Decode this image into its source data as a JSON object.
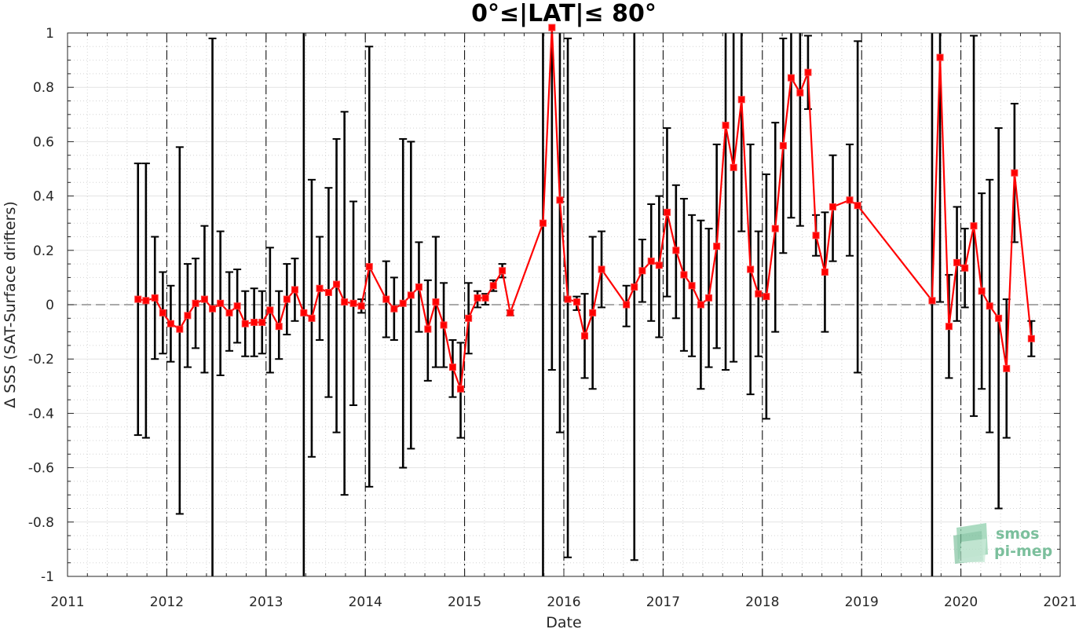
{
  "chart_data": {
    "type": "line",
    "title": "0°≤|LAT|≤ 80°",
    "xlabel": "Date",
    "ylabel": "Δ SSS (SAT-Surface drifters)",
    "xlim": [
      2011,
      2021
    ],
    "ylim": [
      -1,
      1
    ],
    "xticks": [
      "2011",
      "2012",
      "2013",
      "2014",
      "2015",
      "2016",
      "2017",
      "2018",
      "2019",
      "2020",
      "2021"
    ],
    "yticks": [
      "-1",
      "-0.8",
      "-0.6",
      "-0.4",
      "-0.2",
      "0",
      "0.2",
      "0.4",
      "0.6",
      "0.8",
      "1"
    ],
    "grid": true,
    "year_markers": [
      2012,
      2013,
      2014,
      2015,
      2016,
      2017,
      2018,
      2019,
      2020
    ],
    "zero_line": 0,
    "series": [
      {
        "color": "#ff0000",
        "errorbar_color": "#000000",
        "points": [
          {
            "x": 2011.71,
            "y": 0.02,
            "lo": -0.48,
            "hi": 0.52
          },
          {
            "x": 2011.79,
            "y": 0.015,
            "lo": -0.49,
            "hi": 0.52
          },
          {
            "x": 2011.88,
            "y": 0.025,
            "lo": -0.2,
            "hi": 0.25
          },
          {
            "x": 2011.96,
            "y": -0.03,
            "lo": -0.18,
            "hi": 0.12
          },
          {
            "x": 2012.04,
            "y": -0.07,
            "lo": -0.21,
            "hi": 0.07
          },
          {
            "x": 2012.13,
            "y": -0.09,
            "lo": -0.77,
            "hi": 0.58
          },
          {
            "x": 2012.21,
            "y": -0.04,
            "lo": -0.23,
            "hi": 0.15
          },
          {
            "x": 2012.29,
            "y": 0.005,
            "lo": -0.16,
            "hi": 0.17
          },
          {
            "x": 2012.38,
            "y": 0.02,
            "lo": -0.25,
            "hi": 0.29
          },
          {
            "x": 2012.46,
            "y": -0.015,
            "lo": -1.0,
            "hi": 0.98
          },
          {
            "x": 2012.54,
            "y": 0.005,
            "lo": -0.26,
            "hi": 0.27
          },
          {
            "x": 2012.63,
            "y": -0.03,
            "lo": -0.17,
            "hi": 0.12
          },
          {
            "x": 2012.71,
            "y": -0.005,
            "lo": -0.14,
            "hi": 0.13
          },
          {
            "x": 2012.79,
            "y": -0.07,
            "lo": -0.19,
            "hi": 0.05
          },
          {
            "x": 2012.88,
            "y": -0.065,
            "lo": -0.19,
            "hi": 0.06
          },
          {
            "x": 2012.96,
            "y": -0.065,
            "lo": -0.18,
            "hi": 0.05
          },
          {
            "x": 2013.04,
            "y": -0.02,
            "lo": -0.25,
            "hi": 0.21
          },
          {
            "x": 2013.13,
            "y": -0.08,
            "lo": -0.2,
            "hi": 0.05
          },
          {
            "x": 2013.21,
            "y": 0.02,
            "lo": -0.11,
            "hi": 0.15
          },
          {
            "x": 2013.29,
            "y": 0.055,
            "lo": -0.06,
            "hi": 0.17
          },
          {
            "x": 2013.38,
            "y": -0.03,
            "lo": -1.0,
            "hi": 1.0
          },
          {
            "x": 2013.46,
            "y": -0.05,
            "lo": -0.56,
            "hi": 0.46
          },
          {
            "x": 2013.54,
            "y": 0.06,
            "lo": -0.13,
            "hi": 0.25
          },
          {
            "x": 2013.63,
            "y": 0.045,
            "lo": -0.34,
            "hi": 0.43
          },
          {
            "x": 2013.71,
            "y": 0.075,
            "lo": -0.47,
            "hi": 0.61
          },
          {
            "x": 2013.79,
            "y": 0.01,
            "lo": -0.7,
            "hi": 0.71
          },
          {
            "x": 2013.88,
            "y": 0.005,
            "lo": -0.37,
            "hi": 0.38
          },
          {
            "x": 2013.96,
            "y": -0.005,
            "lo": -0.03,
            "hi": 0.02
          },
          {
            "x": 2014.04,
            "y": 0.14,
            "lo": -0.67,
            "hi": 0.95
          },
          {
            "x": 2014.21,
            "y": 0.02,
            "lo": -0.12,
            "hi": 0.16
          },
          {
            "x": 2014.29,
            "y": -0.015,
            "lo": -0.13,
            "hi": 0.1
          },
          {
            "x": 2014.38,
            "y": 0.005,
            "lo": -0.6,
            "hi": 0.61
          },
          {
            "x": 2014.46,
            "y": 0.035,
            "lo": -0.53,
            "hi": 0.6
          },
          {
            "x": 2014.54,
            "y": 0.065,
            "lo": -0.1,
            "hi": 0.23
          },
          {
            "x": 2014.63,
            "y": -0.09,
            "lo": -0.28,
            "hi": 0.09
          },
          {
            "x": 2014.71,
            "y": 0.01,
            "lo": -0.23,
            "hi": 0.25
          },
          {
            "x": 2014.79,
            "y": -0.075,
            "lo": -0.23,
            "hi": 0.08
          },
          {
            "x": 2014.88,
            "y": -0.23,
            "lo": -0.34,
            "hi": -0.13
          },
          {
            "x": 2014.96,
            "y": -0.31,
            "lo": -0.49,
            "hi": -0.14
          },
          {
            "x": 2015.04,
            "y": -0.05,
            "lo": -0.18,
            "hi": 0.08
          },
          {
            "x": 2015.13,
            "y": 0.025,
            "lo": -0.01,
            "hi": 0.05
          },
          {
            "x": 2015.21,
            "y": 0.025,
            "lo": 0.0,
            "hi": 0.04
          },
          {
            "x": 2015.29,
            "y": 0.07,
            "lo": 0.05,
            "hi": 0.09
          },
          {
            "x": 2015.38,
            "y": 0.125,
            "lo": 0.1,
            "hi": 0.15
          },
          {
            "x": 2015.46,
            "y": -0.03,
            "lo": -0.04,
            "hi": -0.02
          },
          {
            "x": 2015.79,
            "y": 0.3,
            "lo": -1.0,
            "hi": 1.0
          },
          {
            "x": 2015.88,
            "y": 1.02,
            "lo": -0.24,
            "hi": 1.0
          },
          {
            "x": 2015.96,
            "y": 0.385,
            "lo": -0.47,
            "hi": 1.0
          },
          {
            "x": 2016.04,
            "y": 0.02,
            "lo": -0.93,
            "hi": 0.98
          },
          {
            "x": 2016.13,
            "y": 0.01,
            "lo": -0.02,
            "hi": 0.03
          },
          {
            "x": 2016.21,
            "y": -0.115,
            "lo": -0.27,
            "hi": 0.04
          },
          {
            "x": 2016.29,
            "y": -0.03,
            "lo": -0.31,
            "hi": 0.25
          },
          {
            "x": 2016.38,
            "y": 0.13,
            "lo": -0.01,
            "hi": 0.27
          },
          {
            "x": 2016.63,
            "y": 0.0,
            "lo": -0.08,
            "hi": 0.07
          },
          {
            "x": 2016.71,
            "y": 0.065,
            "lo": -0.94,
            "hi": 1.0
          },
          {
            "x": 2016.79,
            "y": 0.125,
            "lo": 0.01,
            "hi": 0.24
          },
          {
            "x": 2016.88,
            "y": 0.16,
            "lo": -0.06,
            "hi": 0.37
          },
          {
            "x": 2016.96,
            "y": 0.145,
            "lo": -0.12,
            "hi": 0.4
          },
          {
            "x": 2017.04,
            "y": 0.34,
            "lo": 0.03,
            "hi": 0.65
          },
          {
            "x": 2017.13,
            "y": 0.2,
            "lo": -0.05,
            "hi": 0.44
          },
          {
            "x": 2017.21,
            "y": 0.11,
            "lo": -0.17,
            "hi": 0.39
          },
          {
            "x": 2017.29,
            "y": 0.07,
            "lo": -0.19,
            "hi": 0.33
          },
          {
            "x": 2017.38,
            "y": 0.0,
            "lo": -0.31,
            "hi": 0.31
          },
          {
            "x": 2017.46,
            "y": 0.025,
            "lo": -0.23,
            "hi": 0.28
          },
          {
            "x": 2017.54,
            "y": 0.215,
            "lo": -0.16,
            "hi": 0.59
          },
          {
            "x": 2017.63,
            "y": 0.66,
            "lo": -0.24,
            "hi": 1.0
          },
          {
            "x": 2017.71,
            "y": 0.505,
            "lo": -0.21,
            "hi": 1.0
          },
          {
            "x": 2017.79,
            "y": 0.755,
            "lo": 0.27,
            "hi": 1.0
          },
          {
            "x": 2017.88,
            "y": 0.13,
            "lo": -0.33,
            "hi": 0.59
          },
          {
            "x": 2017.96,
            "y": 0.04,
            "lo": -0.19,
            "hi": 0.27
          },
          {
            "x": 2018.04,
            "y": 0.03,
            "lo": -0.42,
            "hi": 0.48
          },
          {
            "x": 2018.13,
            "y": 0.28,
            "lo": -0.1,
            "hi": 0.67
          },
          {
            "x": 2018.21,
            "y": 0.585,
            "lo": 0.19,
            "hi": 0.98
          },
          {
            "x": 2018.29,
            "y": 0.835,
            "lo": 0.32,
            "hi": 1.0
          },
          {
            "x": 2018.38,
            "y": 0.78,
            "lo": 0.29,
            "hi": 1.0
          },
          {
            "x": 2018.46,
            "y": 0.855,
            "lo": 0.72,
            "hi": 0.99
          },
          {
            "x": 2018.54,
            "y": 0.255,
            "lo": 0.18,
            "hi": 0.33
          },
          {
            "x": 2018.63,
            "y": 0.12,
            "lo": -0.1,
            "hi": 0.34
          },
          {
            "x": 2018.71,
            "y": 0.36,
            "lo": 0.16,
            "hi": 0.55
          },
          {
            "x": 2018.88,
            "y": 0.385,
            "lo": 0.18,
            "hi": 0.59
          },
          {
            "x": 2018.96,
            "y": 0.365,
            "lo": -0.25,
            "hi": 0.97
          },
          {
            "x": 2019.71,
            "y": 0.015,
            "lo": -1.0,
            "hi": 1.0
          },
          {
            "x": 2019.79,
            "y": 0.91,
            "lo": 0.01,
            "hi": 1.0
          },
          {
            "x": 2019.88,
            "y": -0.08,
            "lo": -0.27,
            "hi": 0.11
          },
          {
            "x": 2019.96,
            "y": 0.155,
            "lo": -0.06,
            "hi": 0.36
          },
          {
            "x": 2020.04,
            "y": 0.135,
            "lo": -0.01,
            "hi": 0.28
          },
          {
            "x": 2020.13,
            "y": 0.29,
            "lo": -0.41,
            "hi": 0.99
          },
          {
            "x": 2020.21,
            "y": 0.05,
            "lo": -0.31,
            "hi": 0.41
          },
          {
            "x": 2020.29,
            "y": -0.005,
            "lo": -0.47,
            "hi": 0.46
          },
          {
            "x": 2020.38,
            "y": -0.05,
            "lo": -0.75,
            "hi": 0.65
          },
          {
            "x": 2020.46,
            "y": -0.235,
            "lo": -0.49,
            "hi": 0.02
          },
          {
            "x": 2020.54,
            "y": 0.485,
            "lo": 0.23,
            "hi": 0.74
          },
          {
            "x": 2020.71,
            "y": -0.125,
            "lo": -0.19,
            "hi": -0.06
          }
        ]
      }
    ]
  },
  "logo": {
    "line1": "smos",
    "line2": "pi-mep",
    "color": "#7bbf9c"
  }
}
